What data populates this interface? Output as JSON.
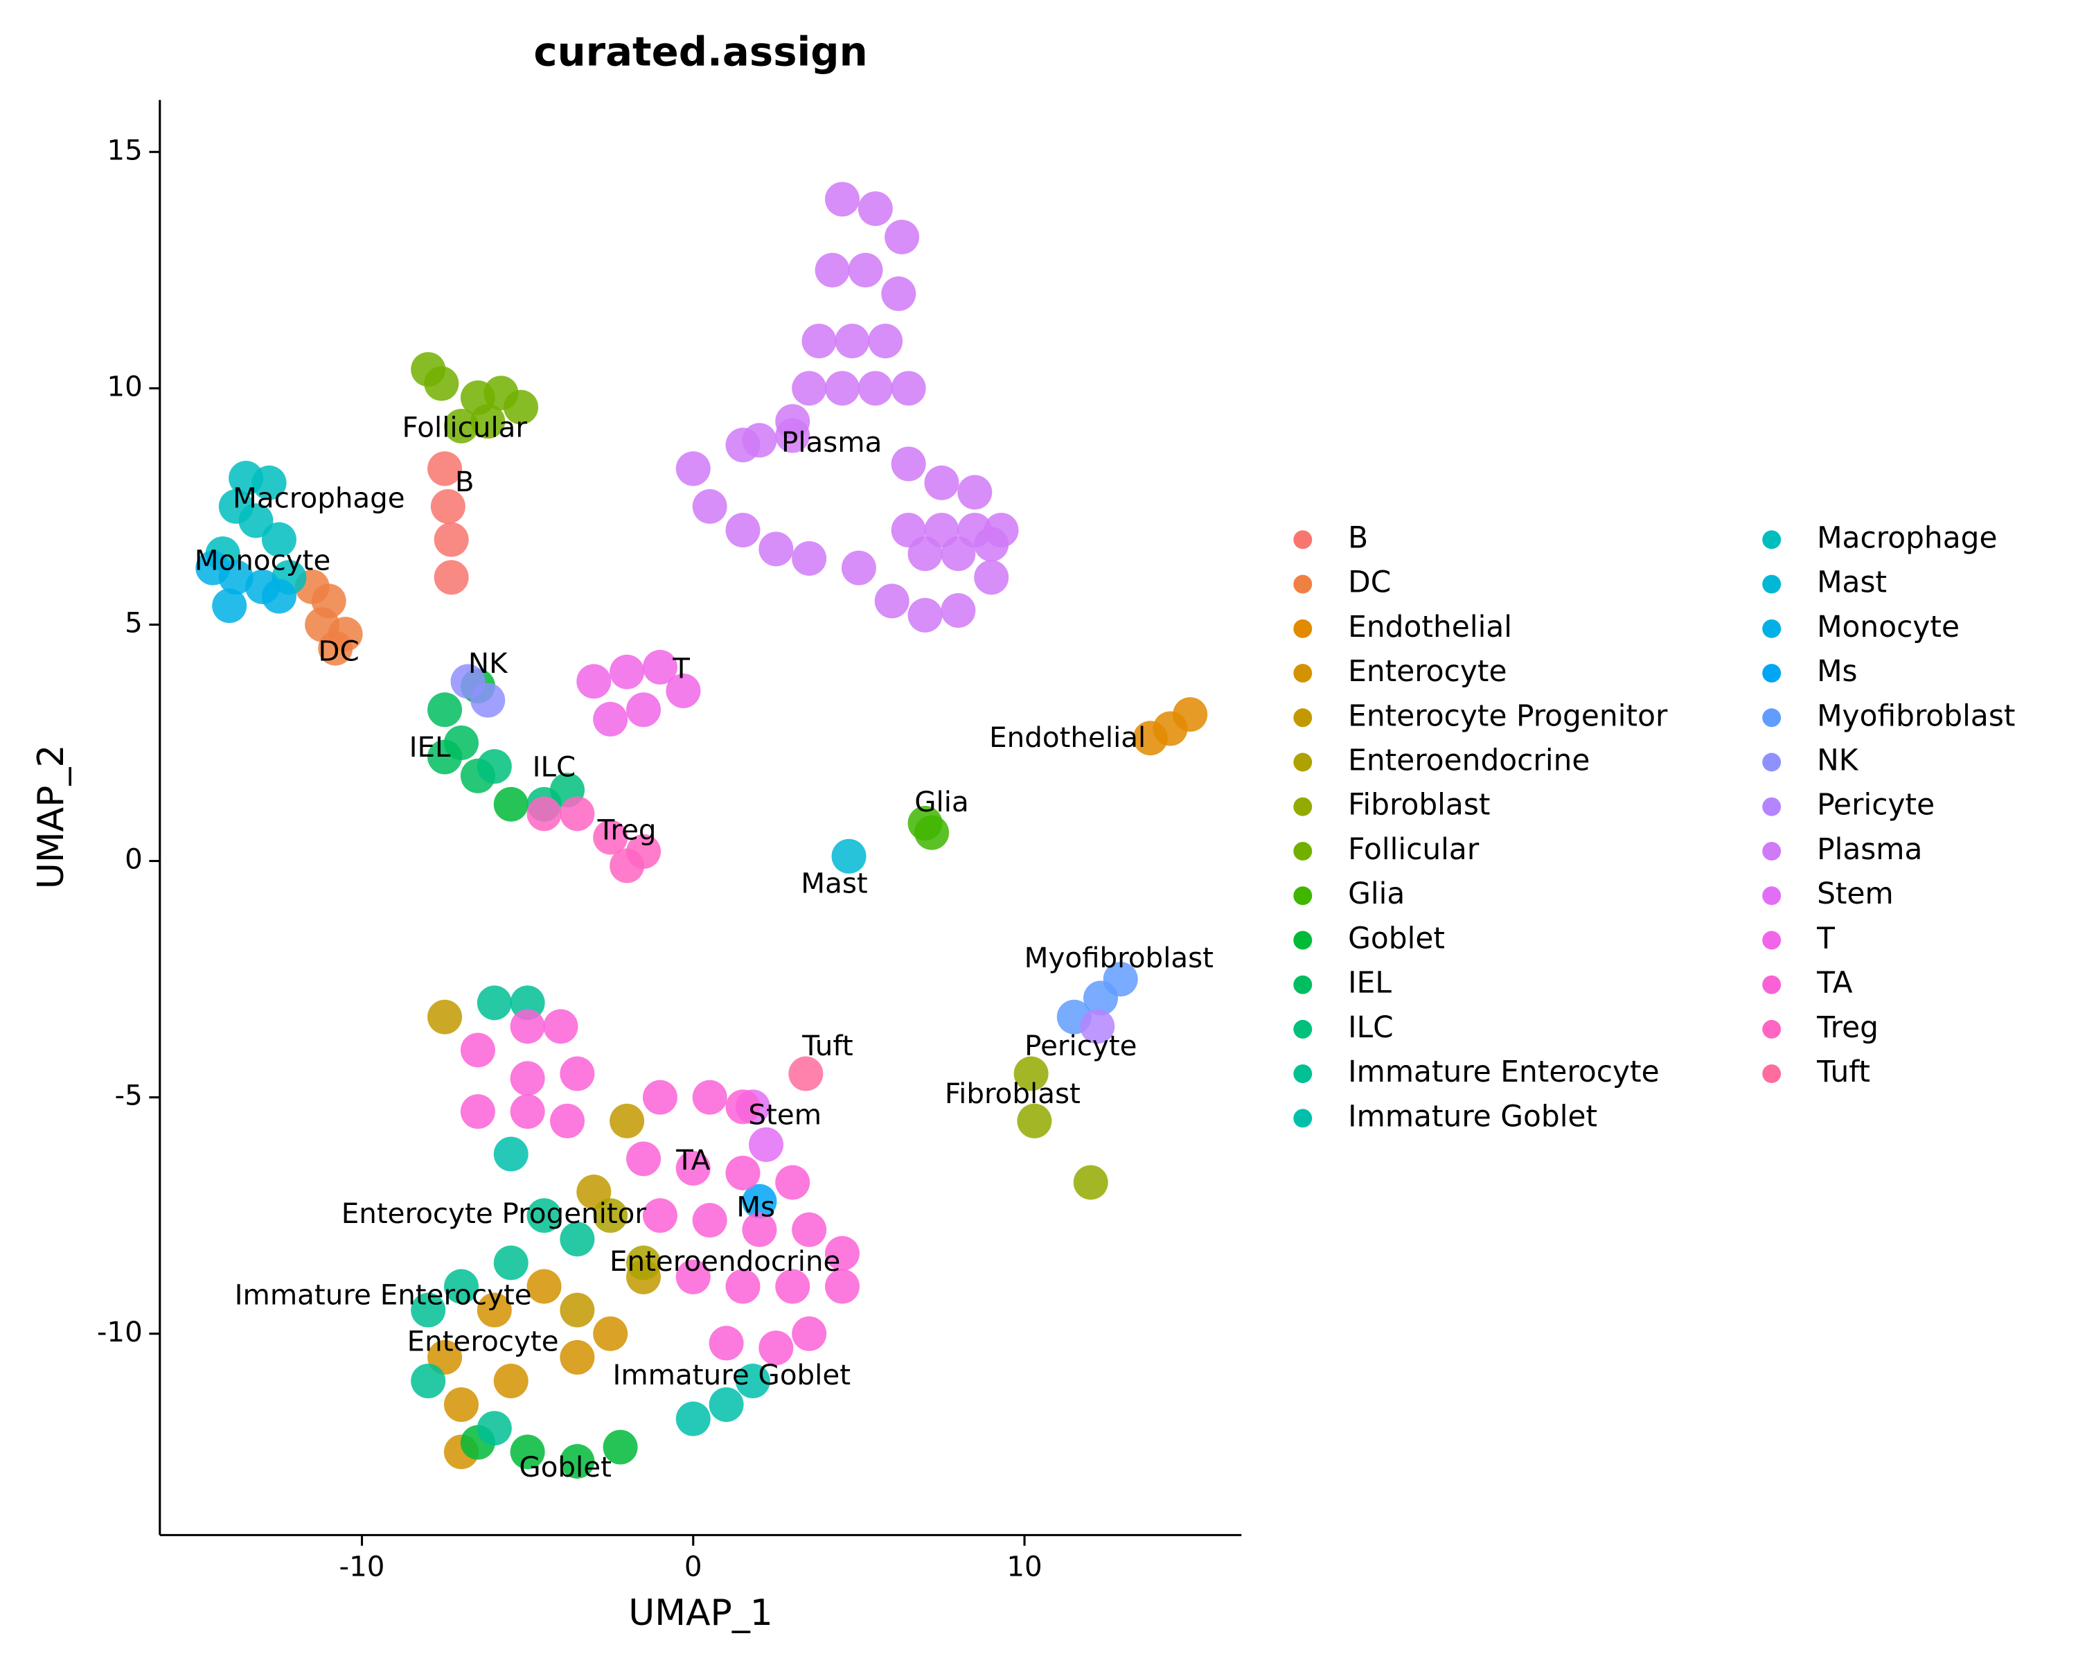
{
  "chart_data": {
    "type": "scatter",
    "title": "curated.assign",
    "x_label": "UMAP_1",
    "y_label": "UMAP_2",
    "xlim": [
      -16.1,
      16.55
    ],
    "ylim": [
      -14.26,
      16.1
    ],
    "xticks": [
      -10,
      0,
      10
    ],
    "yticks": [
      -10,
      -5,
      0,
      5,
      10,
      15
    ],
    "grid": false,
    "legend": "right",
    "series": [
      {
        "name": "B",
        "color": "#F8766D",
        "x": [
          -7.5,
          -7.4,
          -7.3,
          -7.3
        ],
        "y": [
          8.3,
          7.5,
          6.8,
          6.0
        ],
        "label_position": [
          -6.9,
          7.98
        ]
      },
      {
        "name": "DC",
        "color": "#EE8043",
        "x": [
          -11.5,
          -11.0,
          -11.2,
          -10.5,
          -10.8
        ],
        "y": [
          5.8,
          5.5,
          5.0,
          4.8,
          4.5
        ],
        "label_position": [
          -10.7,
          4.4
        ]
      },
      {
        "name": "Endothelial",
        "color": "#E28A00",
        "x": [
          13.8,
          14.4,
          15.0
        ],
        "y": [
          2.6,
          2.8,
          3.1
        ],
        "label_position": [
          11.3,
          2.57
        ]
      },
      {
        "name": "Enterocyte",
        "color": "#D49200",
        "x": [
          -7.5,
          -7.0,
          -6.0,
          -4.5,
          -3.5,
          -2.5,
          -7.0,
          -5.5
        ],
        "y": [
          -10.5,
          -11.5,
          -9.5,
          -9.0,
          -10.5,
          -10.0,
          -12.5,
          -11.0
        ],
        "label_position": [
          -6.35,
          -10.2
        ]
      },
      {
        "name": "Enterocyte Progenitor",
        "color": "#C29A00",
        "x": [
          -3.0,
          -2.0,
          -1.5,
          -3.5,
          -7.5
        ],
        "y": [
          -7.0,
          -5.5,
          -8.8,
          -9.5,
          -3.3
        ],
        "label_position": [
          -6.02,
          -7.5
        ]
      },
      {
        "name": "Enteroendocrine",
        "color": "#ADA200",
        "x": [
          -1.5,
          -2.5
        ],
        "y": [
          -8.5,
          -7.5
        ],
        "label_position": [
          0.96,
          -8.51
        ]
      },
      {
        "name": "Fibroblast",
        "color": "#93AA00",
        "x": [
          10.2,
          10.3,
          12.0
        ],
        "y": [
          -4.5,
          -5.5,
          -6.8
        ],
        "label_position": [
          9.64,
          -4.96
        ]
      },
      {
        "name": "Follicular",
        "color": "#72B000",
        "x": [
          -8.0,
          -7.6,
          -6.5,
          -5.8,
          -5.2,
          -6.2,
          -7.0
        ],
        "y": [
          10.4,
          10.1,
          9.8,
          9.9,
          9.6,
          9.3,
          9.2
        ],
        "label_position": [
          -6.9,
          9.13
        ]
      },
      {
        "name": "Glia",
        "color": "#3FB600",
        "x": [
          7.0,
          7.2
        ],
        "y": [
          0.8,
          0.6
        ],
        "label_position": [
          7.5,
          1.21
        ]
      },
      {
        "name": "Goblet",
        "color": "#00BA38",
        "x": [
          -6.5,
          -5.5,
          -5.0,
          -3.5,
          -2.2,
          -6.5
        ],
        "y": [
          3.7,
          1.2,
          -12.5,
          -12.7,
          -12.4,
          -12.3
        ],
        "label_position": [
          -3.86,
          -12.86
        ]
      },
      {
        "name": "IEL",
        "color": "#00BD5F",
        "x": [
          -7.5,
          -7.0,
          -7.5,
          -6.5
        ],
        "y": [
          3.2,
          2.5,
          2.2,
          1.8
        ],
        "label_position": [
          -7.95,
          2.37
        ]
      },
      {
        "name": "ILC",
        "color": "#00C07B",
        "x": [
          -6.0,
          -4.5,
          -3.8
        ],
        "y": [
          2.0,
          1.2,
          1.5
        ],
        "label_position": [
          -4.2,
          1.95
        ]
      },
      {
        "name": "Immature Enterocyte",
        "color": "#00C094",
        "x": [
          -8.0,
          -7.0,
          -5.5,
          -4.5,
          -8.0,
          -6.0,
          -3.5,
          -6.0,
          -5.0
        ],
        "y": [
          -9.5,
          -9.0,
          -8.5,
          -7.5,
          -11.0,
          -12.0,
          -8.0,
          -3.0,
          -3.0
        ],
        "label_position": [
          -9.36,
          -9.22
        ]
      },
      {
        "name": "Immature Goblet",
        "color": "#00C0AB",
        "x": [
          1.0,
          0.0,
          1.8,
          -5.5
        ],
        "y": [
          -11.5,
          -11.8,
          -11.0,
          -6.2
        ],
        "label_position": [
          1.16,
          -10.91
        ]
      },
      {
        "name": "Macrophage",
        "color": "#00BDC0",
        "x": [
          -13.5,
          -12.8,
          -13.2,
          -12.5,
          -14.2,
          -13.8,
          -12.2
        ],
        "y": [
          8.1,
          8.0,
          7.2,
          6.8,
          6.5,
          7.5,
          6.0
        ],
        "label_position": [
          -11.3,
          7.64
        ]
      },
      {
        "name": "Mast",
        "color": "#00B8D5",
        "x": [
          4.7
        ],
        "y": [
          0.1
        ],
        "label_position": [
          4.26,
          -0.51
        ]
      },
      {
        "name": "Monocyte",
        "color": "#00B0E6",
        "x": [
          -14.5,
          -13.8,
          -13.0,
          -14.0,
          -12.5
        ],
        "y": [
          6.2,
          6.0,
          5.8,
          5.4,
          5.6
        ],
        "label_position": [
          -13.0,
          6.32
        ]
      },
      {
        "name": "Ms",
        "color": "#00A5F4",
        "x": [
          2.0
        ],
        "y": [
          -7.2
        ],
        "label_position": [
          1.89,
          -7.36
        ]
      },
      {
        "name": "Myofibroblast",
        "color": "#619CFF",
        "x": [
          11.5,
          12.3,
          12.9
        ],
        "y": [
          -3.3,
          -2.9,
          -2.5
        ],
        "label_position": [
          12.85,
          -2.09
        ]
      },
      {
        "name": "NK",
        "color": "#8F91FF",
        "x": [
          -6.8,
          -6.2
        ],
        "y": [
          3.8,
          3.4
        ],
        "label_position": [
          -6.2,
          4.14
        ]
      },
      {
        "name": "Pericyte",
        "color": "#B385FF",
        "x": [
          12.2
        ],
        "y": [
          -3.5
        ],
        "label_position": [
          11.7,
          -3.95
        ]
      },
      {
        "name": "Plasma",
        "color": "#D07AF7",
        "x": [
          4.5,
          5.5,
          6.3,
          4.2,
          5.2,
          6.2,
          3.8,
          4.8,
          5.8,
          3.5,
          4.5,
          5.5,
          6.5,
          3.0,
          1.5,
          0,
          0.5,
          1.5,
          2.5,
          3.5,
          5,
          6,
          7,
          8,
          9,
          9.3,
          8.5,
          7.5,
          6.5,
          7,
          8,
          9,
          2,
          3,
          6.5,
          7.5,
          8.5
        ],
        "y": [
          14,
          13.8,
          13.2,
          12.5,
          12.5,
          12,
          11,
          11,
          11,
          10,
          10,
          10,
          10,
          9.3,
          8.8,
          8.3,
          7.5,
          7,
          6.6,
          6.4,
          6.2,
          5.5,
          5.2,
          5.3,
          6,
          7,
          7.8,
          8,
          8.4,
          6.5,
          6.5,
          6.7,
          8.9,
          9,
          7,
          7,
          7
        ],
        "label_position": [
          4.18,
          8.82
        ]
      },
      {
        "name": "Stem",
        "color": "#E36EF6",
        "x": [
          1.8,
          2.2
        ],
        "y": [
          -5.2,
          -6.0
        ],
        "label_position": [
          2.77,
          -5.41
        ]
      },
      {
        "name": "T",
        "color": "#F166E8",
        "x": [
          -3.0,
          -2.0,
          -1.0,
          -0.3,
          -2.5,
          -1.5
        ],
        "y": [
          3.8,
          4.0,
          4.1,
          3.6,
          3.0,
          3.2
        ],
        "label_position": [
          -0.36,
          4.03
        ]
      },
      {
        "name": "TA",
        "color": "#FB61D7",
        "x": [
          -1,
          0.5,
          1.5,
          -1.5,
          0,
          1.5,
          3,
          -1,
          0.5,
          2,
          3.5,
          4.5,
          0,
          1.5,
          3,
          4.5,
          1,
          2.5,
          3.5,
          -6.5,
          -5,
          -4,
          -3.5,
          -6.5,
          -5,
          -3.8,
          -5
        ],
        "y": [
          -5,
          -5,
          -5.2,
          -6.3,
          -6.5,
          -6.6,
          -6.8,
          -7.5,
          -7.6,
          -7.8,
          -7.8,
          -8.3,
          -8.8,
          -9,
          -9,
          -9,
          -10.2,
          -10.3,
          -10,
          -4,
          -3.5,
          -3.5,
          -4.5,
          -5.3,
          -5.3,
          -5.5,
          -4.6
        ],
        "label_position": [
          0,
          -6.37
        ]
      },
      {
        "name": "Treg",
        "color": "#FF65C3",
        "x": [
          -3.5,
          -2.5,
          -1.5,
          -2.0,
          -4.5
        ],
        "y": [
          1.0,
          0.5,
          0.2,
          -0.1,
          1.0
        ],
        "label_position": [
          -2.0,
          0.62
        ]
      },
      {
        "name": "Tuft",
        "color": "#FF6C9F",
        "x": [
          3.4
        ],
        "y": [
          -4.5
        ],
        "label_position": [
          4.06,
          -3.95
        ]
      }
    ]
  }
}
